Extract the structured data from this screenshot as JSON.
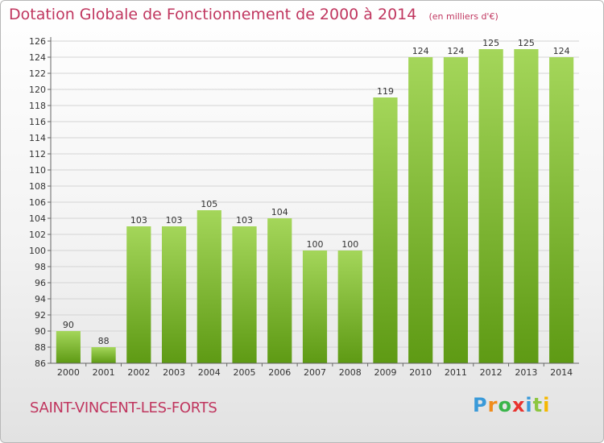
{
  "title": "Dotation Globale de Fonctionnement de 2000 à 2014",
  "unit": "(en milliers d'€)",
  "commune": "SAINT-VINCENT-LES-FORTS",
  "logo": {
    "letters": [
      "P",
      "r",
      "o",
      "x",
      "i",
      "t",
      "i"
    ],
    "colors": [
      "#3a9ad9",
      "#f08c1c",
      "#3ab54a",
      "#e8322e",
      "#3a9ad9",
      "#8cc63f",
      "#f5b800"
    ]
  },
  "colors": {
    "title": "#c0365f",
    "bar_light": "#a4d65a",
    "bar_dark": "#5e9a14",
    "grid": "#d4d4d4"
  },
  "chart_data": {
    "type": "bar",
    "categories": [
      "2000",
      "2001",
      "2002",
      "2003",
      "2004",
      "2005",
      "2006",
      "2007",
      "2008",
      "2009",
      "2010",
      "2011",
      "2012",
      "2013",
      "2014"
    ],
    "values": [
      90,
      88,
      103,
      103,
      105,
      103,
      104,
      100,
      100,
      119,
      124,
      124,
      125,
      125,
      124
    ],
    "ylim": [
      86,
      126
    ],
    "yticks": [
      86,
      88,
      90,
      92,
      94,
      96,
      98,
      100,
      102,
      104,
      106,
      108,
      110,
      112,
      114,
      116,
      118,
      120,
      122,
      124,
      126
    ],
    "grid": true,
    "data_labels": true
  }
}
